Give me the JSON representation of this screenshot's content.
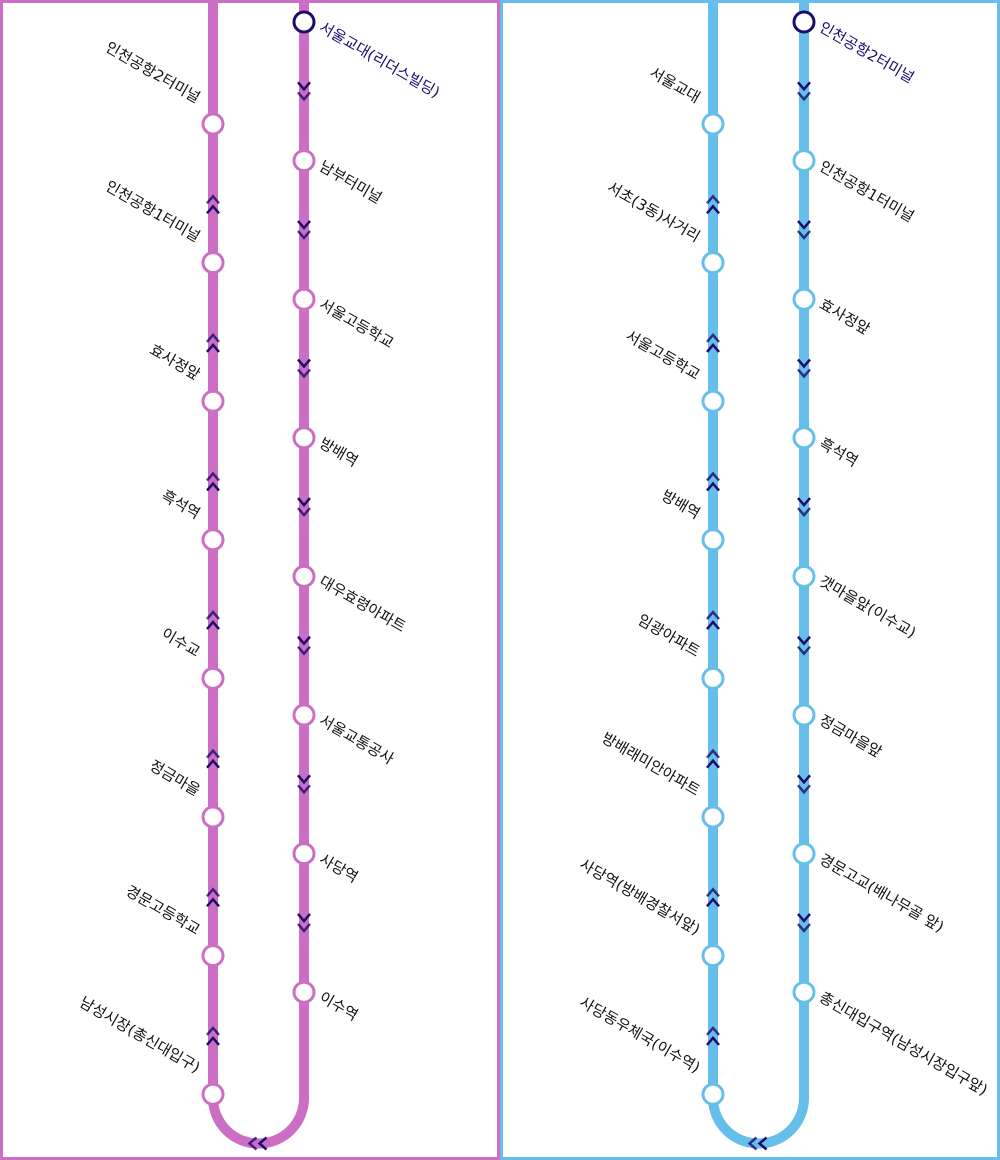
{
  "routes": [
    {
      "color": "#cc6ec4",
      "up_stops": [
        "인천공항2터미널",
        "인천공항1터미널",
        "효사정앞",
        "흑석역",
        "이수교",
        "정금마을",
        "경문고등학교",
        "남성시장(총신대입구)"
      ],
      "down_stops": [
        "서울교대(리더스빌딩)",
        "남부터미널",
        "서울고등학교",
        "방배역",
        "대우효령아파트",
        "서울교통공사",
        "사당역",
        "이수역"
      ]
    },
    {
      "color": "#66bfea",
      "up_stops": [
        "서울교대",
        "서초(3동)사거리",
        "서울고등학교",
        "방배역",
        "임광아파트",
        "방배래미안아파트",
        "사당역(방배경찰서앞)",
        "사당동우체국(이수역)"
      ],
      "down_stops": [
        "인천공항2터미널",
        "인천공항1터미널",
        "효사정앞",
        "흑석역",
        "갯마을앞(이수교)",
        "정금마을앞",
        "경문고교(배나무골 앞)",
        "총신대입구역(남성시장입구앞)"
      ]
    }
  ],
  "colors": {
    "arrow": "#1c0a6e",
    "start_text": "#1c0a6e",
    "label_text": "#111111",
    "station_fill": "#ffffff"
  }
}
